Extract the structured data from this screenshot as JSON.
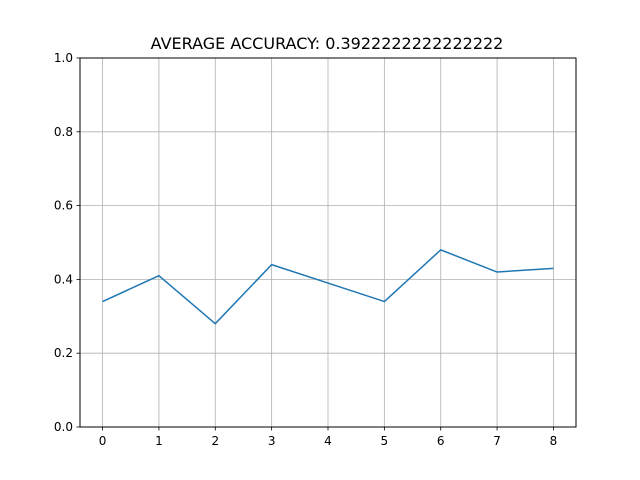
{
  "chart_data": {
    "type": "line",
    "title": "AVERAGE ACCURACY: 0.3922222222222222",
    "xlabel": "",
    "ylabel": "",
    "x": [
      0,
      1,
      2,
      3,
      4,
      5,
      6,
      7,
      8
    ],
    "series": [
      {
        "values": [
          0.34,
          0.41,
          0.28,
          0.44,
          0.39,
          0.34,
          0.48,
          0.42,
          0.43
        ],
        "color": "#1f77b4"
      }
    ],
    "xlim": [
      -0.4,
      8.4
    ],
    "ylim": [
      0.0,
      1.0
    ],
    "xticks": [
      "0",
      "1",
      "2",
      "3",
      "4",
      "5",
      "6",
      "7",
      "8"
    ],
    "yticks": [
      "0.0",
      "0.2",
      "0.4",
      "0.6",
      "0.8",
      "1.0"
    ],
    "grid": true,
    "grid_color": "#b0b0b0",
    "legend": "none"
  }
}
